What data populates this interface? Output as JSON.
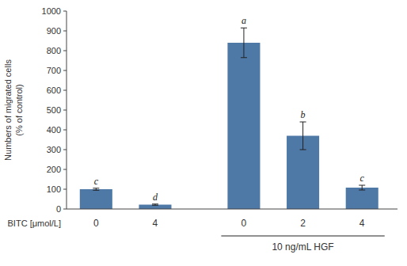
{
  "chart_data": {
    "type": "bar",
    "categories": [
      "0",
      "4",
      "0",
      "2",
      "4"
    ],
    "values": [
      100,
      22,
      840,
      370,
      108
    ],
    "errors": [
      5,
      3,
      75,
      70,
      12
    ],
    "bar_annotations": [
      "c",
      "d",
      "a",
      "b",
      "c"
    ],
    "category_groups": [
      null,
      null,
      "10 ng/mL HGF",
      "10 ng/mL HGF",
      "10 ng/mL HGF"
    ],
    "xlabel": "BITC [μmol/L]",
    "ylabel": [
      "Numbers of migrated cells",
      "(% of control)"
    ],
    "ylim": [
      0,
      1000
    ],
    "yticks": [
      0,
      100,
      200,
      300,
      400,
      500,
      600,
      700,
      800,
      900,
      1000
    ],
    "color": "#4e79a7",
    "grid": false
  }
}
